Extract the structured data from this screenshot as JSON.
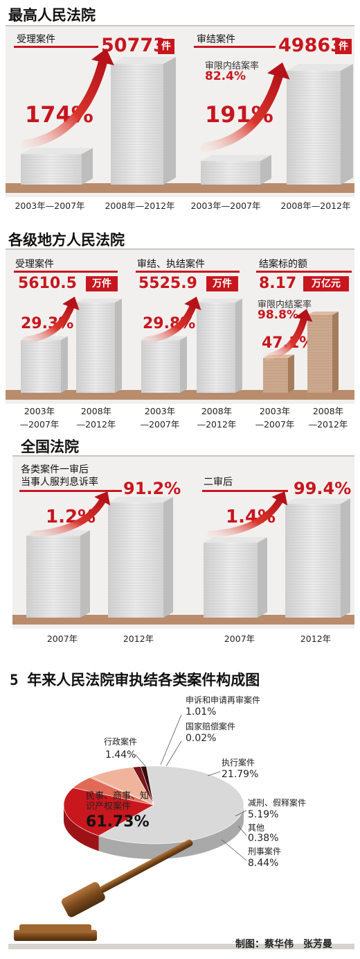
{
  "sections": {
    "supreme_title": "最高人民法院",
    "local_title": "各级地方人民法院",
    "national_title": "全国法院",
    "pie_title": "5 年来人民法院审执结各类案件构成图"
  },
  "supreme": {
    "accepted": {
      "label": "受理案件",
      "value": "50773",
      "unit": "件",
      "growth": "174%"
    },
    "concluded": {
      "label": "审结案件",
      "value": "49863",
      "unit": "件",
      "growth": "191%",
      "rate_label": "审限内结案率",
      "rate": "82.4%"
    },
    "x_labels": [
      "2003年—2007年",
      "2008年—2012年",
      "2003年—2007年",
      "2008年—2012年"
    ]
  },
  "local": {
    "accepted": {
      "label": "受理案件",
      "value": "5610.5",
      "unit": "万件",
      "growth": "29.3%"
    },
    "concluded": {
      "label": "审结、执结案件",
      "value": "5525.9",
      "unit": "万件",
      "growth": "29.8%"
    },
    "amount": {
      "label": "结案标的额",
      "value": "8.17",
      "unit": "万亿元",
      "growth": "47.1%",
      "rate_label": "审限内结案率",
      "rate": "98.8%"
    },
    "x_labels": [
      [
        "2003年",
        "—2007年"
      ],
      [
        "2008年",
        "—2012年"
      ],
      [
        "2003年",
        "—2007年"
      ],
      [
        "2008年",
        "—2012年"
      ],
      [
        "2003年",
        "—2007年"
      ],
      [
        "2008年",
        "—2012年"
      ]
    ]
  },
  "national": {
    "first": {
      "label_line1": "各类案件一审后",
      "label_line2": "当事人服判息诉率",
      "value": "91.2%",
      "growth": "1.2%"
    },
    "second": {
      "label": "二审后",
      "value": "99.4%",
      "growth": "1.4%"
    },
    "x_labels": [
      "2007年",
      "2012年",
      "2007年",
      "2012年"
    ]
  },
  "chart_data": {
    "type": "pie",
    "title": "5 年来人民法院审执结各类案件构成图",
    "slices": [
      {
        "label": "民事、商事、知识产权案件",
        "value": 61.73,
        "display": "61.73%",
        "color": "#d9d9d9"
      },
      {
        "label": "执行案件",
        "value": 21.79,
        "display": "21.79%",
        "color": "#c9171e"
      },
      {
        "label": "减刑、假释案件",
        "value": 5.19,
        "display": "5.19%",
        "color": "#e06a55"
      },
      {
        "label": "其他",
        "value": 0.38,
        "display": "0.38%",
        "color": "#e8846e"
      },
      {
        "label": "刑事案件",
        "value": 8.44,
        "display": "8.44%",
        "color": "#f0b49c"
      },
      {
        "label": "行政案件",
        "value": 1.44,
        "display": "1.44%",
        "color": "#7a1518"
      },
      {
        "label": "申诉和申请再审案件",
        "value": 1.01,
        "display": "1.01%",
        "color": "#3a0a0c"
      },
      {
        "label": "国家赔偿案件",
        "value": 0.02,
        "display": "0.02%",
        "color": "#222222"
      }
    ]
  },
  "credit": "制图：蔡华伟　张芳曼",
  "colors": {
    "accent": "#c8161e",
    "ground": "#b88c6c",
    "tan_bar": "#c9a07e"
  }
}
